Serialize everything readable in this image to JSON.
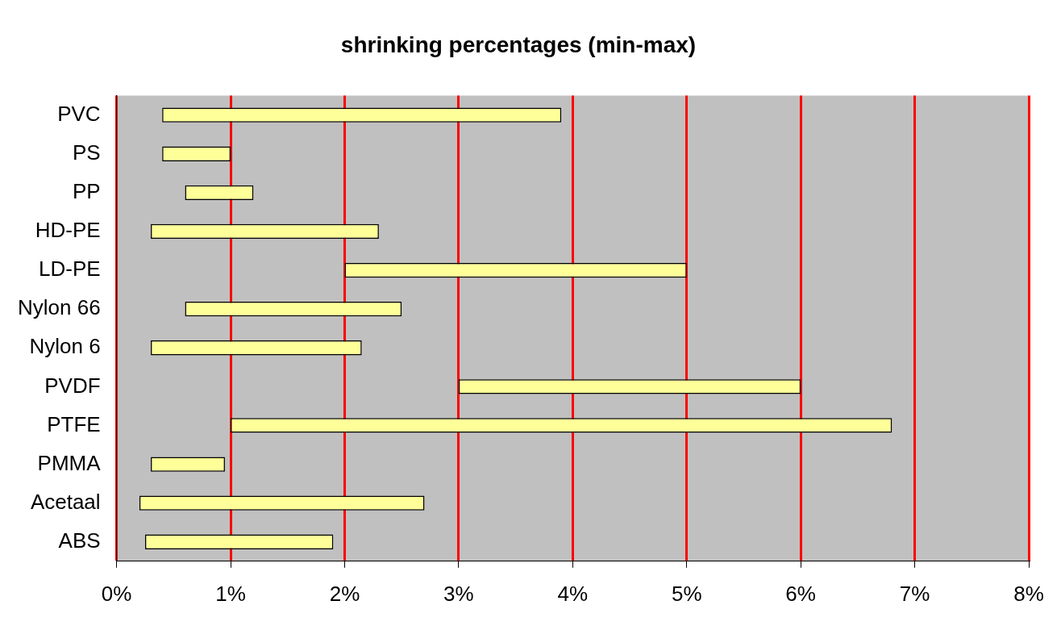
{
  "chart_data": {
    "type": "bar",
    "orientation": "horizontal",
    "title": "shrinking percentages (min-max)",
    "categories": [
      "PVC",
      "PS",
      "PP",
      "HD-PE",
      "LD-PE",
      "Nylon 66",
      "Nylon 6",
      "PVDF",
      "PTFE",
      "PMMA",
      "Acetaal",
      "ABS"
    ],
    "base": [
      0.4,
      0.4,
      0.6,
      0.3,
      2,
      0.6,
      0.3,
      3,
      1,
      0.3,
      0.2,
      0.25
    ],
    "values": [
      3.5,
      0.6,
      0.6,
      2.0,
      3,
      1.9,
      1.85,
      3,
      5.8,
      0.65,
      2.5,
      1.65
    ],
    "color": "#ffff99",
    "xlim": [
      0,
      8
    ],
    "xticks": [
      {
        "value": 0,
        "label": "0%"
      },
      {
        "value": 1,
        "label": "1%"
      },
      {
        "value": 2,
        "label": "2%"
      },
      {
        "value": 3,
        "label": "3%"
      },
      {
        "value": 4,
        "label": "4%"
      },
      {
        "value": 5,
        "label": "5%"
      },
      {
        "value": 6,
        "label": "6%"
      },
      {
        "value": 7,
        "label": "7%"
      },
      {
        "value": 8,
        "label": "8%"
      }
    ],
    "grid": "x",
    "legend": false
  }
}
